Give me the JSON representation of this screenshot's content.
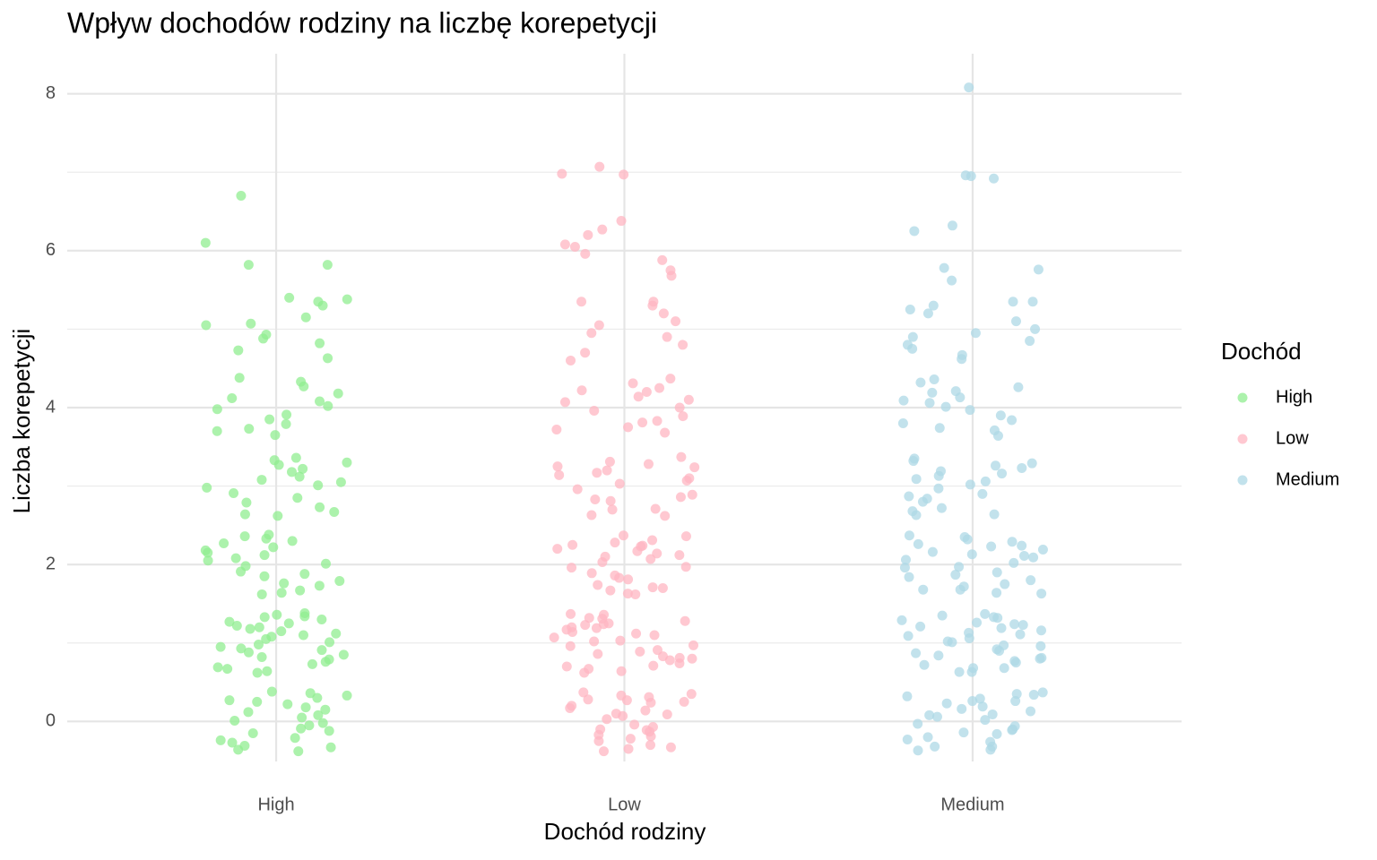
{
  "chart_data": {
    "type": "strip",
    "title": "Wpływ dochodów rodziny na liczbę korepetycji",
    "x_label": "Dochód rodziny",
    "y_label": "Liczba korepetycji",
    "legend_title": "Dochód",
    "legend": "right",
    "categories": [
      "High",
      "Low",
      "Medium"
    ],
    "ylim": [
      -0.51,
      8.51
    ],
    "yticks": [
      0,
      2,
      4,
      6,
      8
    ],
    "grid": true,
    "minor_grid": true,
    "series": [
      {
        "name": "High",
        "color": "#90EE90",
        "values": [
          -0.38,
          0.12,
          -0.21,
          0.33,
          0.05,
          -0.09,
          0.27,
          -0.33,
          0.18,
          -0.02,
          0.36,
          -0.15,
          0.08,
          -0.27,
          0.22,
          -0.36,
          0.01,
          0.3,
          -0.12,
          0.15,
          -0.24,
          0.38,
          -0.05,
          0.25,
          -0.31,
          0.62,
          1.12,
          0.79,
          1.33,
          1.05,
          0.91,
          1.27,
          0.67,
          1.18,
          0.98,
          1.36,
          0.85,
          1.08,
          0.73,
          1.22,
          0.64,
          1.01,
          1.3,
          0.88,
          1.15,
          0.76,
          1.38,
          0.95,
          1.25,
          0.69,
          1.1,
          0.82,
          1.34,
          0.93,
          1.2,
          1.62,
          2.12,
          1.79,
          2.33,
          2.05,
          1.91,
          2.27,
          1.67,
          2.18,
          1.98,
          2.36,
          1.85,
          2.08,
          1.73,
          2.22,
          1.64,
          2.01,
          2.3,
          1.88,
          2.15,
          1.76,
          2.38,
          2.62,
          3.12,
          2.79,
          3.33,
          3.05,
          2.91,
          3.27,
          2.67,
          3.18,
          2.98,
          3.36,
          2.85,
          3.08,
          2.73,
          3.22,
          2.64,
          3.01,
          3.3,
          3.65,
          4.12,
          3.79,
          4.33,
          4.02,
          3.91,
          4.27,
          3.7,
          4.18,
          3.98,
          4.38,
          3.85,
          4.08,
          3.73,
          4.63,
          4.73,
          4.82,
          4.88,
          4.93,
          5.05,
          5.07,
          5.15,
          5.3,
          5.35,
          5.38,
          5.4,
          5.82,
          5.82,
          6.1,
          6.7
        ]
      },
      {
        "name": "Low",
        "color": "#FFB6C1",
        "values": [
          -0.35,
          0.14,
          -0.19,
          0.31,
          0.07,
          -0.11,
          0.25,
          -0.3,
          0.2,
          -0.04,
          0.37,
          -0.13,
          0.1,
          -0.25,
          0.24,
          -0.38,
          0.03,
          0.28,
          -0.1,
          0.17,
          -0.22,
          0.35,
          -0.07,
          0.27,
          -0.33,
          0.09,
          -0.17,
          0.33,
          0.64,
          1.14,
          0.81,
          1.31,
          1.07,
          0.89,
          1.25,
          0.7,
          1.2,
          0.96,
          1.37,
          0.83,
          1.1,
          0.71,
          1.24,
          0.62,
          1.03,
          1.28,
          0.86,
          1.17,
          0.74,
          1.36,
          0.97,
          1.23,
          0.67,
          1.12,
          0.8,
          1.32,
          0.91,
          1.19,
          0.78,
          1.02,
          1.63,
          2.14,
          1.81,
          2.31,
          2.07,
          1.89,
          2.25,
          1.7,
          2.2,
          1.96,
          2.37,
          1.83,
          2.1,
          1.71,
          2.24,
          1.62,
          2.03,
          2.28,
          1.86,
          2.17,
          1.74,
          2.36,
          1.97,
          2.23,
          1.67,
          2.12,
          2.63,
          3.14,
          2.81,
          3.31,
          3.07,
          2.89,
          3.25,
          2.7,
          3.2,
          2.96,
          3.37,
          2.83,
          3.1,
          2.71,
          3.24,
          2.62,
          3.03,
          3.28,
          2.86,
          3.17,
          3.68,
          4.14,
          3.81,
          4.31,
          4.07,
          3.89,
          4.25,
          3.72,
          4.2,
          3.96,
          4.37,
          3.83,
          4.1,
          3.75,
          4.0,
          4.22,
          4.6,
          4.7,
          4.8,
          4.9,
          4.95,
          5.05,
          5.1,
          5.2,
          5.3,
          5.35,
          5.35,
          5.68,
          5.75,
          5.88,
          5.96,
          6.05,
          6.08,
          6.2,
          6.27,
          6.38,
          6.97,
          6.98,
          7.07
        ]
      },
      {
        "name": "Medium",
        "color": "#ADD8E6",
        "values": [
          -0.36,
          0.13,
          -0.2,
          0.32,
          0.06,
          -0.1,
          0.26,
          -0.32,
          0.19,
          -0.03,
          0.35,
          -0.14,
          0.09,
          -0.26,
          0.23,
          -0.37,
          0.02,
          0.29,
          -0.11,
          0.16,
          -0.23,
          0.37,
          -0.06,
          0.26,
          -0.32,
          0.08,
          -0.16,
          0.34,
          0.63,
          1.13,
          0.8,
          1.32,
          1.06,
          0.9,
          1.26,
          0.68,
          1.19,
          0.97,
          1.35,
          0.84,
          1.09,
          0.72,
          1.23,
          0.63,
          1.02,
          1.29,
          0.87,
          1.16,
          0.75,
          1.37,
          0.96,
          1.24,
          0.68,
          1.11,
          0.81,
          1.33,
          0.92,
          1.21,
          0.77,
          1.01,
          1.64,
          2.13,
          1.8,
          2.32,
          2.06,
          1.9,
          2.26,
          1.68,
          2.19,
          1.97,
          2.35,
          1.84,
          2.09,
          1.72,
          2.23,
          1.63,
          2.02,
          2.29,
          1.87,
          2.16,
          1.75,
          2.37,
          1.96,
          2.24,
          1.68,
          2.11,
          2.64,
          3.13,
          2.8,
          3.32,
          3.06,
          2.9,
          3.26,
          2.68,
          3.19,
          2.97,
          3.35,
          2.84,
          3.09,
          2.72,
          3.23,
          2.63,
          3.02,
          3.29,
          2.87,
          3.16,
          3.64,
          4.13,
          3.8,
          4.32,
          4.06,
          3.9,
          4.26,
          3.71,
          4.19,
          3.97,
          4.36,
          3.84,
          4.09,
          3.74,
          4.01,
          4.21,
          4.62,
          4.67,
          4.75,
          4.8,
          4.85,
          4.9,
          4.95,
          5.0,
          5.1,
          5.2,
          5.25,
          5.3,
          5.35,
          5.35,
          5.62,
          5.76,
          5.78,
          6.25,
          6.32,
          6.92,
          6.95,
          6.96,
          8.08
        ]
      }
    ]
  }
}
